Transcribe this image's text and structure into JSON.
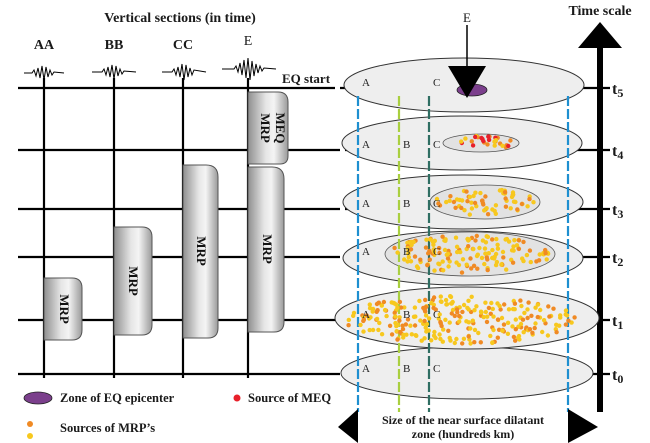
{
  "header": {
    "title": "Vertical sections (in time)",
    "time_scale": "Time scale"
  },
  "columns": [
    "AA",
    "BB",
    "CC",
    "E"
  ],
  "eq_start": "EQ start",
  "epicenter_marker": "E",
  "time_labels": [
    "t5",
    "t4",
    "t3",
    "t2",
    "t1",
    "t0"
  ],
  "ellipse_line_labels": [
    "A",
    "B",
    "C"
  ],
  "mrp_boxes": [
    "MRP",
    "MRP",
    "MRP",
    "MRP"
  ],
  "meq_box": {
    "line1": "MEQ",
    "line2": "MRP"
  },
  "legend": {
    "epicenter": "Zone of EQ epicenter",
    "meq": "Source of MEQ",
    "mrp": "Sources of MRP’s"
  },
  "arrow_caption": {
    "line1": "Size of the near surface dilatant",
    "line2": "zone (hundreds km)"
  },
  "colors": {
    "line_a": "#1e8fd0",
    "line_b": "#a9cf3f",
    "line_c": "#2f6e62",
    "epicenter": "#7b3f8c",
    "meq_dot": "#e8202a",
    "mrp_dot_orange": "#f08a24",
    "mrp_dot_yellow": "#f7c81e"
  }
}
